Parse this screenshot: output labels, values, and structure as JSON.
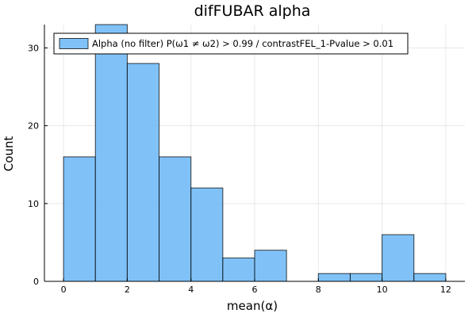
{
  "chart_data": {
    "type": "bar",
    "title": "difFUBAR alpha",
    "xlabel": "mean(α)",
    "ylabel": "Count",
    "bin_edges": [
      0,
      1,
      2,
      3,
      4,
      5,
      6,
      7,
      8,
      9,
      10,
      11,
      12
    ],
    "values": [
      16,
      33,
      28,
      16,
      12,
      3,
      4,
      0,
      1,
      1,
      6,
      1
    ],
    "xlim": [
      -0.6,
      12.6
    ],
    "ylim": [
      0,
      33
    ],
    "xticks": [
      0,
      2,
      4,
      6,
      8,
      10,
      12
    ],
    "yticks": [
      0,
      10,
      20,
      30
    ],
    "grid": true,
    "legend_position": "top-left",
    "series": [
      {
        "name": "Alpha (no filter) P(ω1 ≠ ω2) > 0.99 / contrastFEL_1-Pvalue > 0.01",
        "color": "#6ab7f7"
      }
    ]
  }
}
